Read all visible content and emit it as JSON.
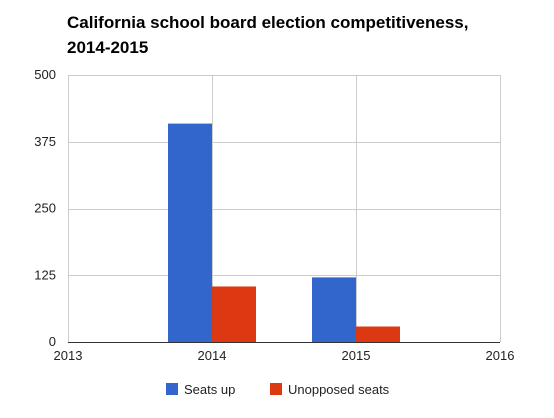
{
  "chart_data": {
    "type": "bar",
    "title_lines": [
      "California school board election competitiveness,",
      "2014-2015"
    ],
    "x_ticks": [
      "2013",
      "2014",
      "2015",
      "2016"
    ],
    "y_ticks": [
      "0",
      "125",
      "250",
      "375",
      "500"
    ],
    "xlim": [
      2013,
      2016
    ],
    "ylim": [
      0,
      500
    ],
    "categories": [
      "2014",
      "2015"
    ],
    "series": [
      {
        "name": "Seats up",
        "color": "#3366cc",
        "values": [
          409,
          121
        ]
      },
      {
        "name": "Unopposed seats",
        "color": "#dc3912",
        "values": [
          104,
          29
        ]
      }
    ],
    "grid": true,
    "legend_position": "bottom"
  }
}
